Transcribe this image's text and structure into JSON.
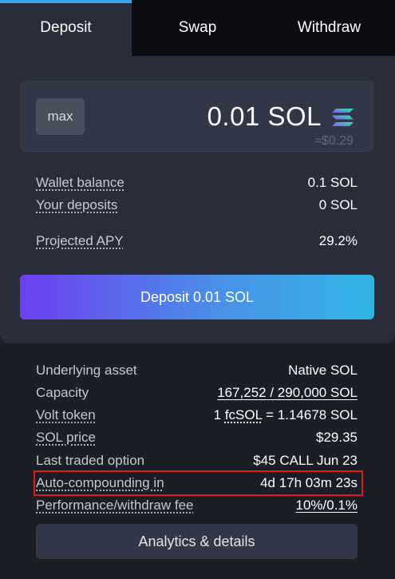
{
  "tabs": [
    {
      "label": "Deposit",
      "active": true
    },
    {
      "label": "Swap",
      "active": false
    },
    {
      "label": "Withdraw",
      "active": false
    }
  ],
  "deposit_form": {
    "max_label": "max",
    "amount": "0.01 SOL",
    "amount_usd": "≈$0.29",
    "token_icon": "solana-logo-icon"
  },
  "balances": {
    "wallet_balance_label": "Wallet balance",
    "wallet_balance_value": "0.1 SOL",
    "your_deposits_label": "Your deposits",
    "your_deposits_value": "0 SOL",
    "projected_apy_label": "Projected APY",
    "projected_apy_value": "29.2%"
  },
  "deposit_button_label": "Deposit 0.01 SOL",
  "details": {
    "underlying_asset_label": "Underlying asset",
    "underlying_asset_value": "Native SOL",
    "capacity_label": "Capacity",
    "capacity_value": "167,252 / 290,000 SOL",
    "volt_token_label": "Volt token",
    "volt_token_prefix": "1 ",
    "volt_token_symbol": "fcSOL",
    "volt_token_suffix": " = 1.14678 SOL",
    "sol_price_label": "SOL price",
    "sol_price_value": "$29.35",
    "last_traded_label": "Last traded option",
    "last_traded_value": "$45 CALL Jun 23",
    "auto_compound_label": "Auto-compounding in",
    "auto_compound_value": "4d 17h 03m 23s",
    "fee_label": "Performance/withdraw fee",
    "fee_value": "10%/0.1%"
  },
  "analytics_button_label": "Analytics & details",
  "colors": {
    "accent_tab": "#3ea3e8",
    "highlight_box": "#e0191e",
    "button_gradient_start": "#6d3ff0",
    "button_gradient_end": "#2fb6e3"
  }
}
